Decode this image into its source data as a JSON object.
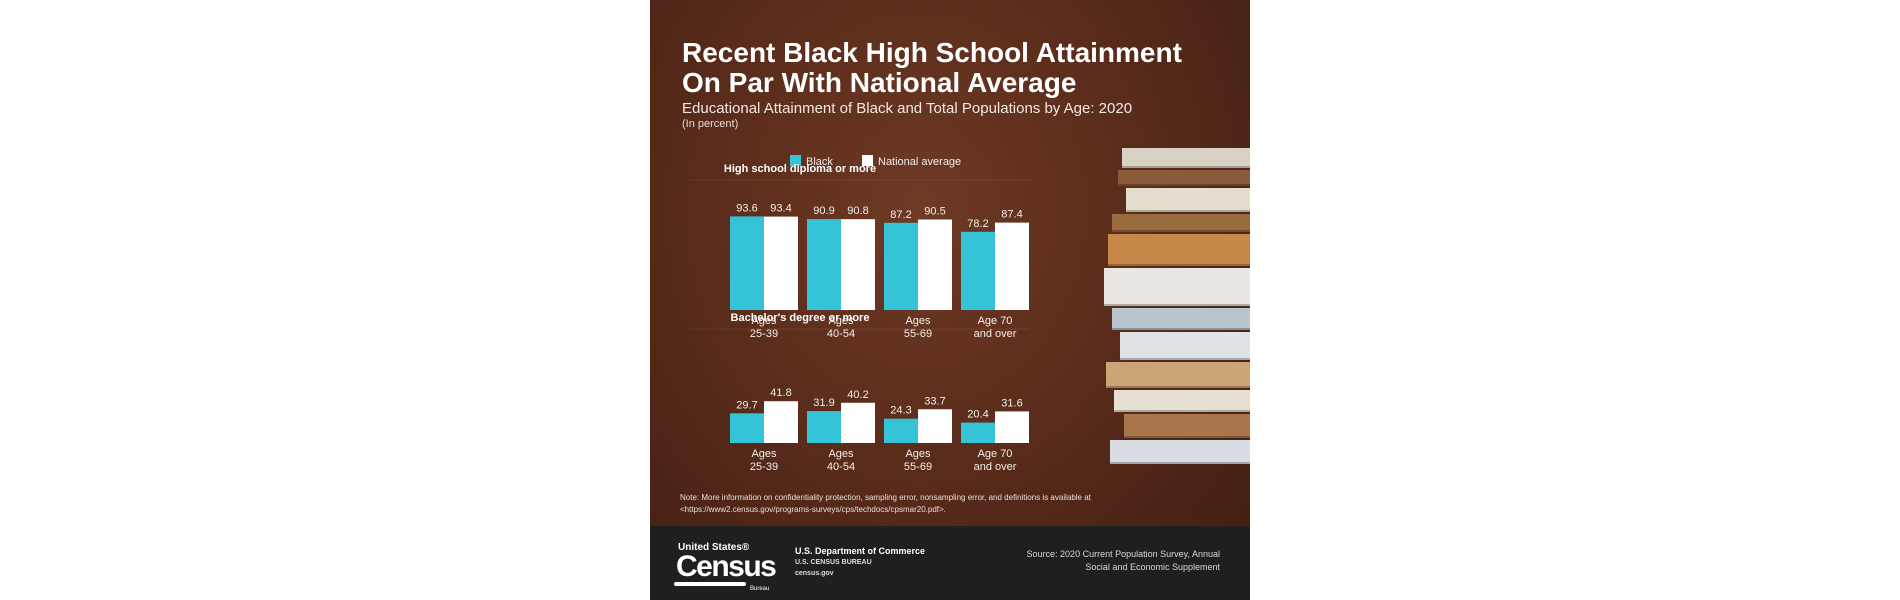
{
  "header": {
    "title": "Recent Black High School Attainment On Par With National Average",
    "subtitle": "Educational Attainment of Black and Total Populations by Age: 2020",
    "unit": "(In percent)"
  },
  "colors": {
    "black": "#35c3d8",
    "national": "#ffffff",
    "text": "#ffffff"
  },
  "chart_data": [
    {
      "type": "bar",
      "title": "High school diploma or more",
      "categories": [
        [
          "Ages",
          "25-39"
        ],
        [
          "Ages",
          "40-54"
        ],
        [
          "Ages",
          "55-69"
        ],
        [
          "Age 70",
          "and over"
        ]
      ],
      "series": [
        {
          "name": "Black",
          "values": [
            93.6,
            90.9,
            87.2,
            78.2
          ]
        },
        {
          "name": "National average",
          "values": [
            93.4,
            90.8,
            90.5,
            87.4
          ]
        }
      ],
      "ylim": [
        0,
        100
      ],
      "legend": "top"
    },
    {
      "type": "bar",
      "title": "Bachelor's degree or more",
      "categories": [
        [
          "Ages",
          "25-39"
        ],
        [
          "Ages",
          "40-54"
        ],
        [
          "Ages",
          "55-69"
        ],
        [
          "Age 70",
          "and over"
        ]
      ],
      "series": [
        {
          "name": "Black",
          "values": [
            29.7,
            31.9,
            24.3,
            20.4
          ]
        },
        {
          "name": "National average",
          "values": [
            41.8,
            40.2,
            33.7,
            31.6
          ]
        }
      ],
      "ylim": [
        0,
        100
      ]
    }
  ],
  "note": "Note: More information on confidentiality protection, sampling error, nonsampling error, and definitions is available at <https://www2.census.gov/programs-surveys/cps/techdocs/cpsmar20.pdf>.",
  "footer": {
    "logo_top": "United States®",
    "logo_main": "Census",
    "logo_bureau": "Bureau",
    "dept": "U.S. Department of Commerce",
    "bureau": "U.S. CENSUS BUREAU",
    "site": "census.gov",
    "source": "Source: 2020 Current Population Survey, Annual Social and Economic Supplement"
  }
}
